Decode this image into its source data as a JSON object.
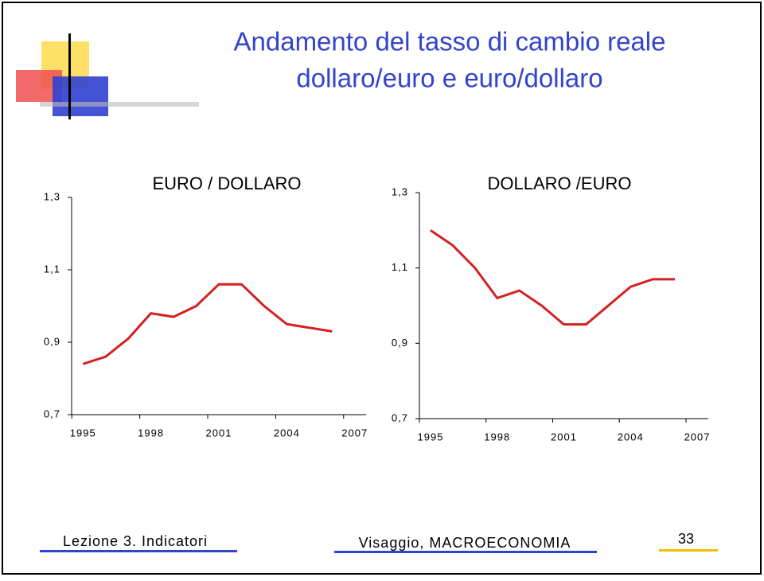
{
  "slide": {
    "title_lines": [
      "Andamento del tasso di cambio reale",
      "dollaro/euro e euro/dollaro"
    ],
    "footer_left": "Lezione 3. Indicatori",
    "footer_center": "Visaggio, MACROECONOMIA",
    "page_number": "33"
  },
  "chart_data": [
    {
      "type": "line",
      "title": "EURO / DOLLARO",
      "x": [
        1995,
        1996,
        1997,
        1998,
        1999,
        2000,
        2001,
        2002,
        2003,
        2004,
        2005,
        2006
      ],
      "series": [
        {
          "color": "#d42020",
          "values": [
            0.84,
            0.86,
            0.91,
            0.98,
            0.97,
            1.0,
            1.06,
            1.06,
            1.0,
            0.95,
            0.94,
            0.93
          ]
        }
      ],
      "xlim": [
        1994.5,
        2007.5
      ],
      "xticks": [
        1995,
        1998,
        2001,
        2004,
        2007
      ],
      "ylim": [
        0.7,
        1.3
      ],
      "yticks": [
        {
          "value": 0.7,
          "label": "0,7"
        },
        {
          "value": 0.9,
          "label": "0,9"
        },
        {
          "value": 1.1,
          "label": "1,1"
        },
        {
          "value": 1.3,
          "label": "1,3"
        }
      ]
    },
    {
      "type": "line",
      "title": "DOLLARO /EURO",
      "x": [
        1995,
        1996,
        1997,
        1998,
        1999,
        2000,
        2001,
        2002,
        2003,
        2004,
        2005,
        2006
      ],
      "series": [
        {
          "color": "#d42020",
          "values": [
            1.2,
            1.16,
            1.1,
            1.02,
            1.04,
            1.0,
            0.95,
            0.95,
            1.0,
            1.05,
            1.07,
            1.07
          ]
        }
      ],
      "xlim": [
        1994.5,
        2007.5
      ],
      "xticks": [
        1995,
        1998,
        2001,
        2004,
        2007
      ],
      "ylim": [
        0.7,
        1.3
      ],
      "yticks": [
        {
          "value": 0.7,
          "label": "0,7"
        },
        {
          "value": 0.9,
          "label": "0,9"
        },
        {
          "value": 1.1,
          "label": "1,1"
        },
        {
          "value": 1.3,
          "label": "1,3"
        }
      ]
    }
  ]
}
